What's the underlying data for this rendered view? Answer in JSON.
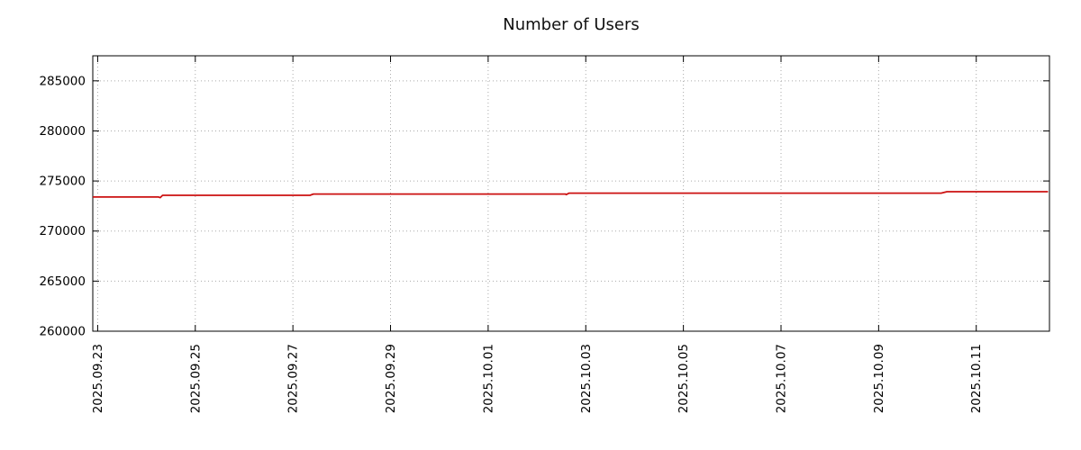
{
  "page": {
    "background": "#ffffff"
  },
  "chart_data": {
    "type": "line",
    "title": "Number of Users",
    "xlabel": "",
    "ylabel": "",
    "grid": true,
    "grid_color": "#aaaaaa",
    "border_color": "#000000",
    "tick_label_color": "#000000",
    "xlim": [
      -0.1,
      19.5
    ],
    "ylim": [
      260000,
      287500
    ],
    "y_ticks": [
      260000,
      265000,
      270000,
      275000,
      280000,
      285000
    ],
    "x_ticks": [
      {
        "offset": 0,
        "label": "2025.09.23"
      },
      {
        "offset": 2,
        "label": "2025.09.25"
      },
      {
        "offset": 4,
        "label": "2025.09.27"
      },
      {
        "offset": 6,
        "label": "2025.09.29"
      },
      {
        "offset": 8,
        "label": "2025.10.01"
      },
      {
        "offset": 10,
        "label": "2025.10.03"
      },
      {
        "offset": 12,
        "label": "2025.10.05"
      },
      {
        "offset": 14,
        "label": "2025.10.07"
      },
      {
        "offset": 16,
        "label": "2025.10.09"
      },
      {
        "offset": 18,
        "label": "2025.10.11"
      }
    ],
    "series": [
      {
        "name": "users",
        "color": "#cc1111",
        "points": [
          [
            -0.1,
            273400
          ],
          [
            1.25,
            273400
          ],
          [
            1.28,
            273340
          ],
          [
            1.33,
            273570
          ],
          [
            4.35,
            273570
          ],
          [
            4.42,
            273700
          ],
          [
            9.58,
            273700
          ],
          [
            9.6,
            273640
          ],
          [
            9.66,
            273790
          ],
          [
            17.28,
            273790
          ],
          [
            17.4,
            273930
          ],
          [
            19.47,
            273930
          ]
        ]
      }
    ],
    "legend": "none"
  }
}
